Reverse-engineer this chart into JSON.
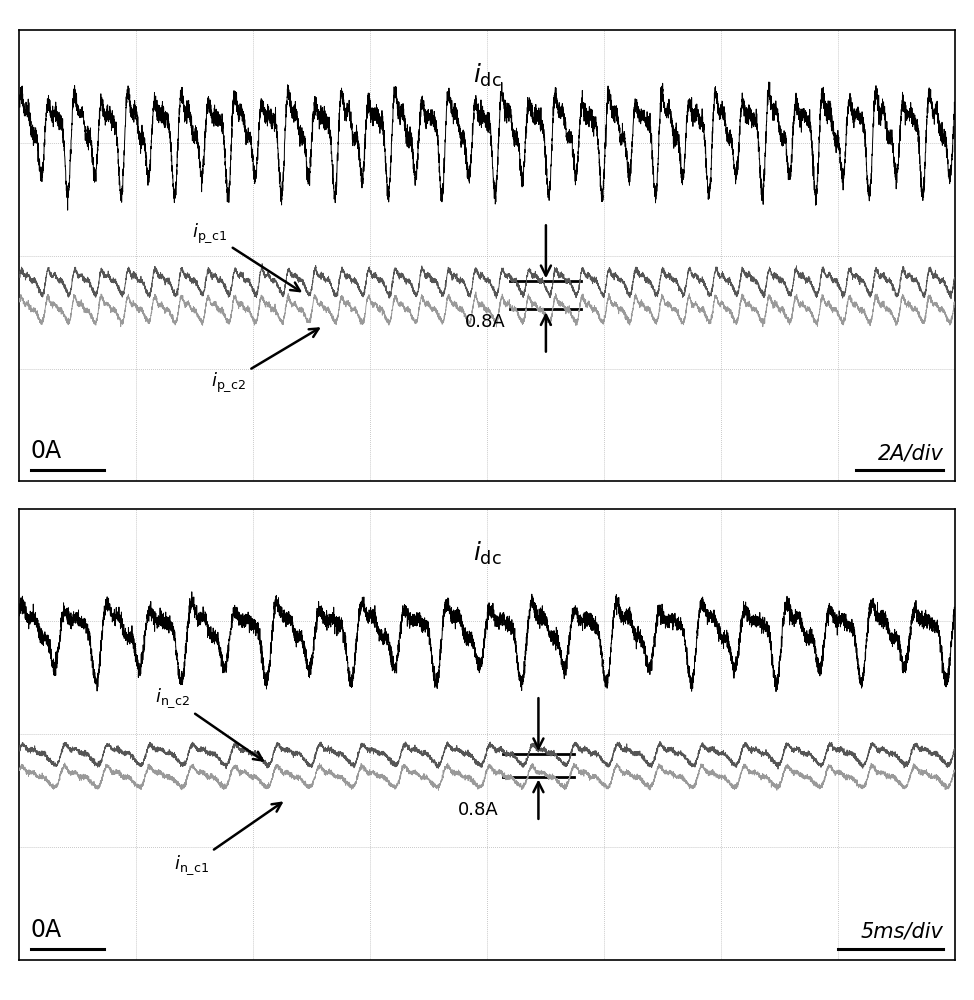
{
  "bg_color": "#ffffff",
  "fig_width": 9.74,
  "fig_height": 10.0,
  "ylim": [
    -4.0,
    4.0
  ],
  "num_points": 8000,
  "duration": 1.0,
  "grid_nx": 8,
  "grid_ny": 4,
  "top_panel": {
    "idc_label": "$i_{\\rm dc}$",
    "ipc1_label": "$i_{\\rm p\\_c1}$",
    "ipc2_label": "$i_{\\rm p\\_c2}$",
    "scale_label": "2A/div",
    "zero_label": "0A",
    "annotation": "0.8A",
    "idc_base": 2.2,
    "idc_amp": 0.9,
    "idc_freq_main": 35,
    "idc_freq2": 70,
    "idc_freq3": 105,
    "idc_noise": 0.08,
    "ic_base1": -0.45,
    "ic_base2": -0.95,
    "ic_amp": 0.22,
    "ic_freq": 35,
    "ic_noise": 0.025
  },
  "bottom_panel": {
    "idc_label": "$i_{\\rm dc}$",
    "inc2_label": "$i_{\\rm n\\_c2}$",
    "inc1_label": "$i_{\\rm n\\_c1}$",
    "scale_label": "5ms/div",
    "zero_label": "0A",
    "annotation": "0.8A",
    "idc_base": 1.8,
    "idc_amp": 0.7,
    "idc_freq_main": 22,
    "idc_freq2": 44,
    "idc_freq3": 66,
    "idc_noise": 0.07,
    "ic_base1": -0.35,
    "ic_base2": -0.75,
    "ic_amp": 0.18,
    "ic_freq": 22,
    "ic_noise": 0.022
  }
}
